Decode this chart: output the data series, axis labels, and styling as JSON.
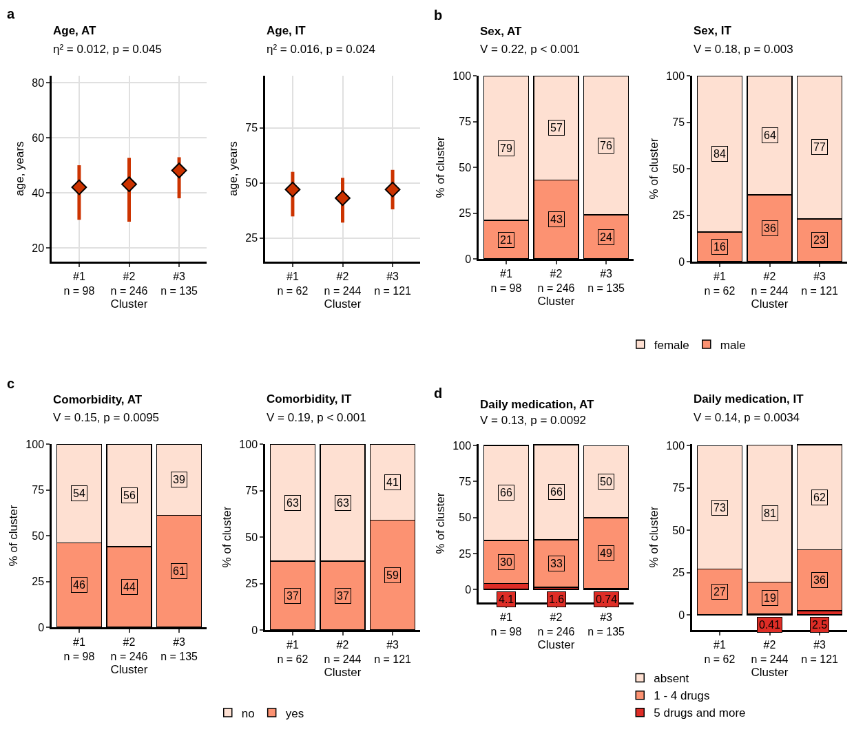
{
  "chart_data": [
    {
      "type": "scatter",
      "title": "Age, AT",
      "subtitle": "η² = 0.012, p = 0.045",
      "xlabel": "Cluster",
      "ylabel": "age, years",
      "annotations": [
        "a"
      ],
      "categories": [
        "#1\nn = 98",
        "#2\nn = 246",
        "#3\nn = 135"
      ],
      "ylim": [
        15,
        82.5
      ],
      "yticks": [
        20,
        40,
        60,
        80
      ],
      "grid": true,
      "marker": "diamond",
      "legend": false,
      "series": [
        {
          "color": "#cc3300",
          "values": [
            42.0,
            43.1,
            48.1
          ],
          "errors": [
            [
              30.2,
              50.0
            ],
            [
              29.5,
              52.7
            ],
            [
              38.0,
              52.9
            ]
          ]
        }
      ]
    },
    {
      "type": "scatter",
      "title": "Age, IT",
      "subtitle": "η² = 0.016, p = 0.024",
      "xlabel": "Cluster",
      "ylabel": "age, years",
      "categories": [
        "#1\nn = 62",
        "#2\nn = 244",
        "#3\nn = 121"
      ],
      "ylim": [
        14.3,
        98.6
      ],
      "yticks": [
        25,
        50,
        75
      ],
      "grid": true,
      "marker": "diamond",
      "legend": false,
      "series": [
        {
          "color": "#cc3300",
          "values": [
            47.0,
            43.1,
            47.0
          ],
          "errors": [
            [
              34.8,
              55.0
            ],
            [
              32.0,
              52.3
            ],
            [
              38.0,
              55.9
            ]
          ]
        }
      ]
    },
    {
      "type": "bar",
      "stacked": true,
      "title": "Sex, AT",
      "subtitle": "V = 0.22, p < 0.001",
      "xlabel": "Cluster",
      "ylabel": "% of cluster",
      "annotations": [
        "b"
      ],
      "categories": [
        "#1\nn = 98",
        "#2\nn = 246",
        "#3\nn = 135"
      ],
      "ylim": [
        0,
        100
      ],
      "yticks": [
        0,
        25,
        50,
        75,
        100
      ],
      "data_labels": true,
      "legend": "bottom",
      "series": [
        {
          "name": "male",
          "color": "#fc9272",
          "values": [
            21,
            43,
            24
          ]
        },
        {
          "name": "female",
          "color": "#fee0d2",
          "values": [
            79,
            57,
            76
          ]
        }
      ]
    },
    {
      "type": "bar",
      "stacked": true,
      "title": "Sex, IT",
      "subtitle": "V = 0.18, p = 0.003",
      "xlabel": "Cluster",
      "ylabel": "% of cluster",
      "categories": [
        "#1\nn = 62",
        "#2\nn = 244",
        "#3\nn = 121"
      ],
      "ylim": [
        0,
        100
      ],
      "yticks": [
        0,
        25,
        50,
        75,
        100
      ],
      "data_labels": true,
      "series": [
        {
          "color": "#fc9272",
          "values": [
            16,
            36,
            23
          ]
        },
        {
          "color": "#fee0d2",
          "values": [
            84,
            64,
            77
          ]
        }
      ]
    },
    {
      "type": "bar",
      "stacked": true,
      "title": "Comorbidity, AT",
      "subtitle": "V = 0.15, p = 0.0095",
      "xlabel": "Cluster",
      "ylabel": "% of cluster",
      "annotations": [
        "c"
      ],
      "categories": [
        "#1\nn = 98",
        "#2\nn = 246",
        "#3\nn = 135"
      ],
      "ylim": [
        0,
        100
      ],
      "yticks": [
        0,
        25,
        50,
        75,
        100
      ],
      "data_labels": true,
      "legend": "bottom",
      "series": [
        {
          "name": "yes",
          "color": "#fc9272",
          "values": [
            46,
            44,
            61
          ]
        },
        {
          "name": "no",
          "color": "#fee0d2",
          "values": [
            54,
            56,
            39
          ]
        }
      ]
    },
    {
      "type": "bar",
      "stacked": true,
      "title": "Comorbidity, IT",
      "subtitle": "V = 0.19, p < 0.001",
      "xlabel": "Cluster",
      "ylabel": "% of cluster",
      "categories": [
        "#1\nn = 62",
        "#2\nn = 244",
        "#3\nn = 121"
      ],
      "ylim": [
        0,
        100
      ],
      "yticks": [
        0,
        25,
        50,
        75,
        100
      ],
      "data_labels": true,
      "series": [
        {
          "color": "#fc9272",
          "values": [
            37,
            37,
            59
          ]
        },
        {
          "color": "#fee0d2",
          "values": [
            63,
            63,
            41
          ]
        }
      ]
    },
    {
      "type": "bar",
      "stacked": true,
      "title": "Daily medication, AT",
      "subtitle": "V = 0.13, p = 0.0092",
      "xlabel": "Cluster",
      "ylabel": "% of cluster",
      "annotations": [
        "d"
      ],
      "categories": [
        "#1\nn = 98",
        "#2\nn = 246",
        "#3\nn = 135"
      ],
      "ylim": [
        -9,
        101
      ],
      "yticks": [
        0,
        25,
        50,
        75,
        100
      ],
      "data_labels": true,
      "legend": "bottom",
      "series": [
        {
          "name": "5 drugs and more",
          "color": "#de2d26",
          "values": [
            4.1,
            1.6,
            0.74
          ]
        },
        {
          "name": "1 - 4 drugs",
          "color": "#fc9272",
          "values": [
            30,
            33,
            49
          ]
        },
        {
          "name": "absent",
          "color": "#fee0d2",
          "values": [
            66,
            66,
            50
          ]
        }
      ]
    },
    {
      "type": "bar",
      "stacked": true,
      "title": "Daily medication, IT",
      "subtitle": "V = 0.14, p = 0.0034",
      "xlabel": "Cluster",
      "ylabel": "% of cluster",
      "categories": [
        "#1\nn = 62",
        "#2\nn = 244",
        "#3\nn = 121"
      ],
      "ylim": [
        -9,
        101
      ],
      "yticks": [
        0,
        25,
        50,
        75,
        100
      ],
      "data_labels": true,
      "series": [
        {
          "color": "#de2d26",
          "values": [
            null,
            0.41,
            2.5
          ]
        },
        {
          "color": "#fc9272",
          "values": [
            27,
            19,
            36
          ]
        },
        {
          "color": "#fee0d2",
          "values": [
            73,
            81,
            62
          ]
        }
      ]
    }
  ]
}
